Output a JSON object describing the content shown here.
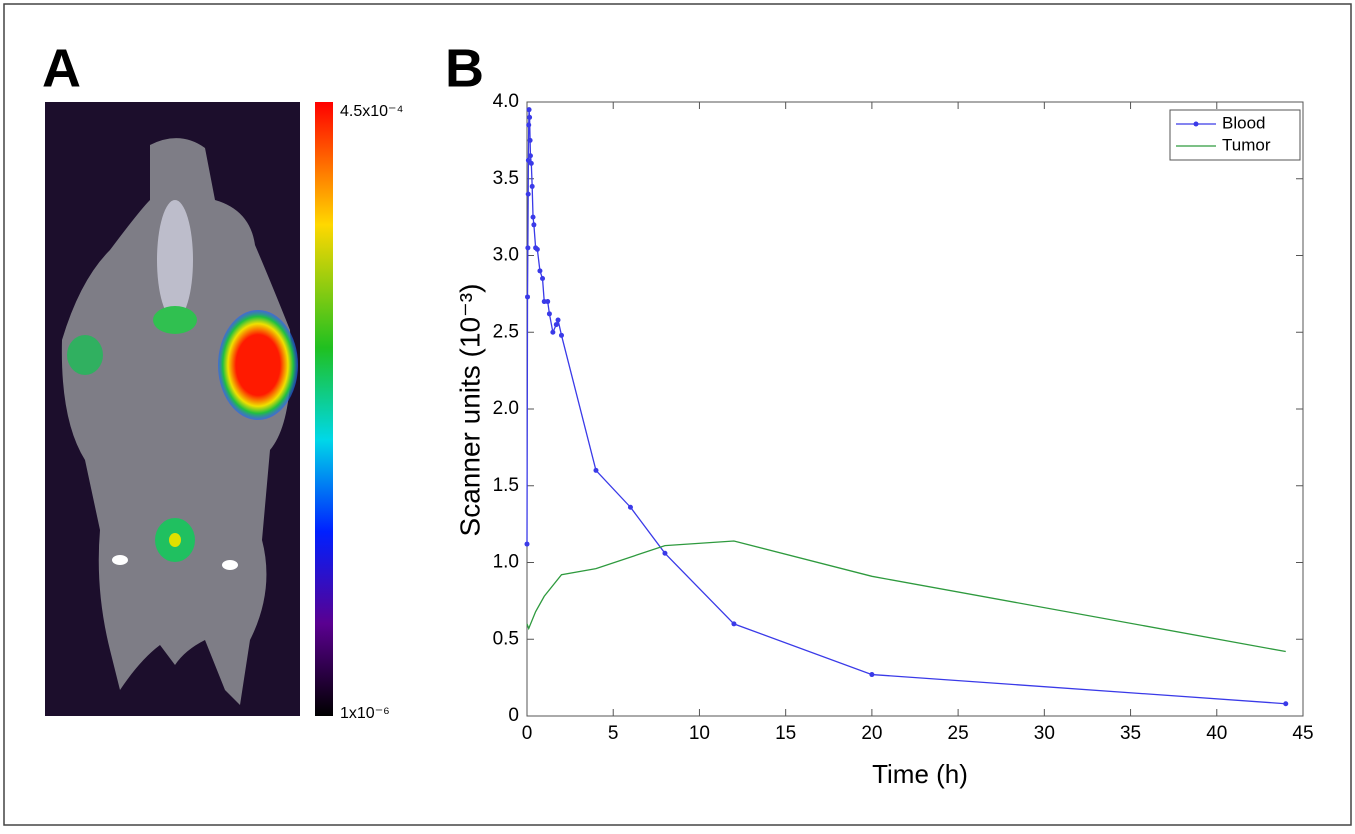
{
  "panel_a": {
    "label": "A",
    "colorbar_max": "4.5x10⁻⁴",
    "colorbar_min": "1x10⁻⁶"
  },
  "chart_data": {
    "type": "line",
    "panel_label": "B",
    "x_label": "Time (h)",
    "y_label": "Scanner units  (10⁻³)",
    "xlim": [
      0,
      45
    ],
    "ylim": [
      0,
      4.0
    ],
    "xticks": [
      0,
      5,
      10,
      15,
      20,
      25,
      30,
      35,
      40,
      45
    ],
    "yticks": [
      0,
      0.5,
      {
        "value": 1,
        "label": "1.0"
      },
      1.5,
      {
        "value": 2,
        "label": "2.0"
      },
      2.5,
      {
        "value": 3,
        "label": "3.0"
      },
      3.5,
      {
        "value": 4,
        "label": "4.0"
      }
    ],
    "grid": false,
    "legend": "upper right",
    "series": [
      {
        "name": "Blood",
        "color": "#3a3ae8",
        "markers": true,
        "x": [
          0,
          0.03,
          0.05,
          0.07,
          0.08,
          0.1,
          0.12,
          0.15,
          0.18,
          0.2,
          0.25,
          0.3,
          0.35,
          0.4,
          0.5,
          0.6,
          0.75,
          0.9,
          1.0,
          1.2,
          1.3,
          1.5,
          1.7,
          1.8,
          2,
          4,
          6,
          8,
          12,
          20,
          44
        ],
        "values": [
          1.12,
          2.73,
          3.05,
          3.4,
          3.62,
          3.85,
          3.95,
          3.9,
          3.75,
          3.65,
          3.6,
          3.45,
          3.25,
          3.2,
          3.05,
          3.04,
          2.9,
          2.85,
          2.7,
          2.7,
          2.62,
          2.5,
          2.55,
          2.58,
          2.48,
          1.6,
          1.36,
          1.06,
          0.6,
          0.27,
          0.08
        ]
      },
      {
        "name": "Tumor",
        "color": "#2e9a3e",
        "markers": false,
        "x": [
          0,
          0.1,
          0.5,
          1,
          2,
          4,
          8,
          12,
          20,
          44
        ],
        "values": [
          0.6,
          0.57,
          0.68,
          0.78,
          0.92,
          0.96,
          1.11,
          1.14,
          0.91,
          0.42
        ]
      }
    ]
  }
}
